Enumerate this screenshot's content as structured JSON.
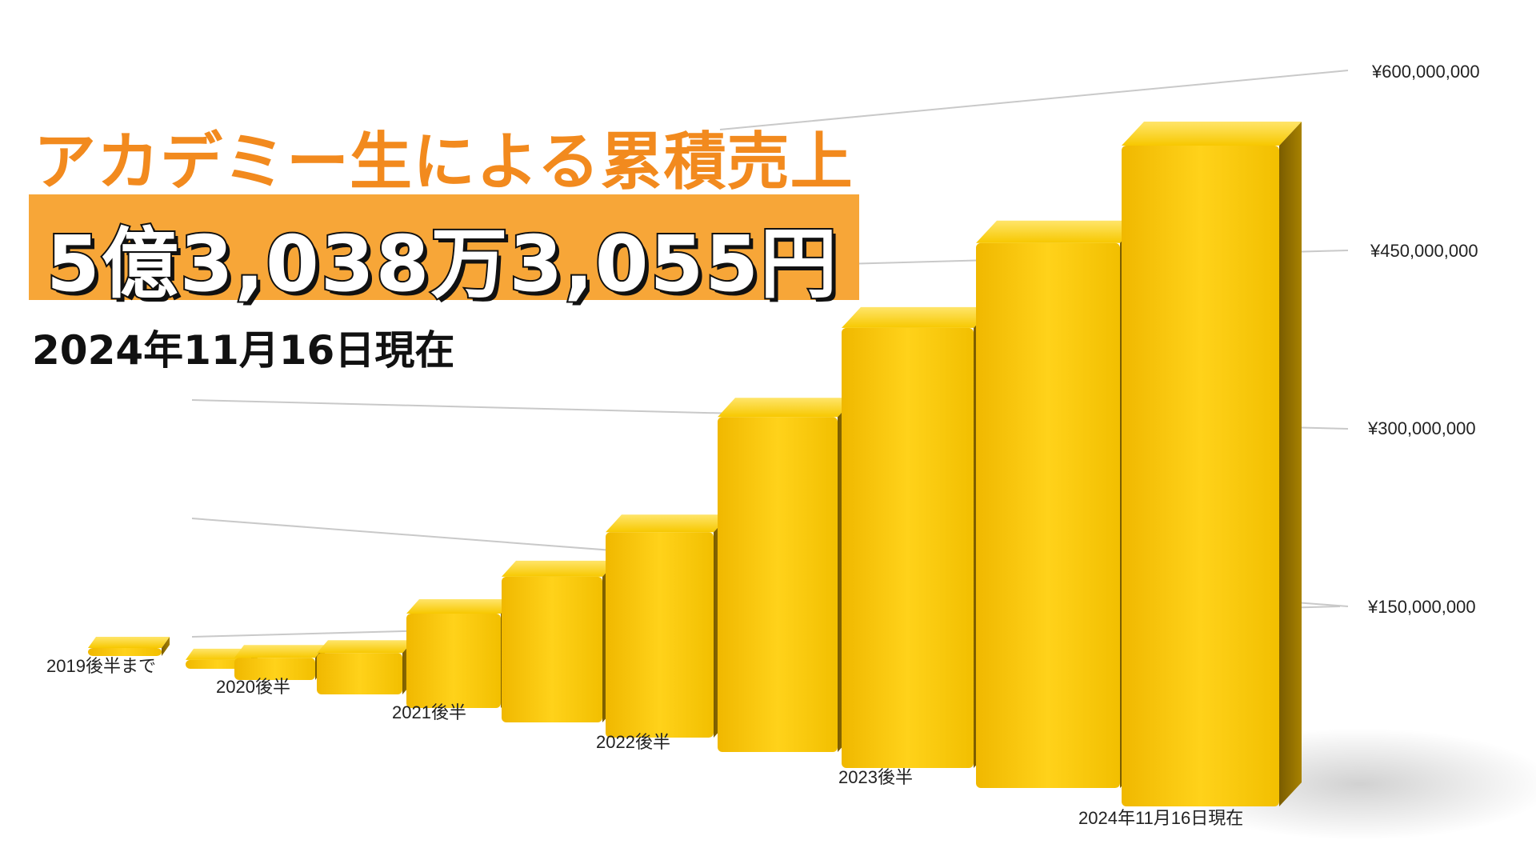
{
  "headline": "アカデミー生による累積売上",
  "total": "5億3,038万3,055円",
  "as_of": "2024年11月16日現在",
  "colors": {
    "title": "#F28A1E",
    "total_box": "#F7A638",
    "bar_front": "#F5C600",
    "bar_side": "#8A6B00",
    "bar_top": "#FFD93A",
    "gridline": "#C9C9C9"
  },
  "chart_data": {
    "type": "bar",
    "style": "3d",
    "categories": [
      "2019後半まで",
      "",
      "2020後半",
      "",
      "2021後半",
      "",
      "2022後半",
      "",
      "2023後半",
      "",
      "2024年11月16日現在"
    ],
    "tick_labels": [
      "2019後半まで",
      "2020後半",
      "2021後半",
      "2022後半",
      "2023後半",
      "2024年11月16日現在"
    ],
    "values": [
      3000000,
      9000000,
      22000000,
      40000000,
      89000000,
      134000000,
      184000000,
      293000000,
      375000000,
      450000000,
      530383055
    ],
    "y_ticks": [
      "¥150,000,000",
      "¥300,000,000",
      "¥450,000,000",
      "¥600,000,000"
    ],
    "ylim": [
      0,
      600000000
    ],
    "grid": true,
    "legend": "none"
  }
}
